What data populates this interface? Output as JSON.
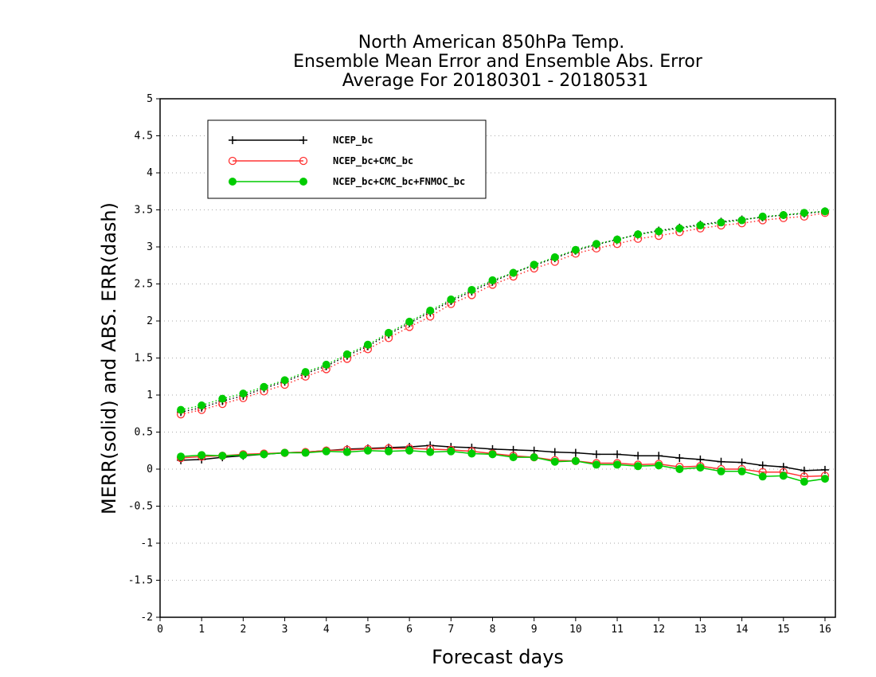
{
  "chart_data": {
    "type": "line",
    "title": [
      "North American 850hPa Temp.",
      "Ensemble Mean Error and Ensemble Abs. Error",
      "Average For 20180301 - 20180531"
    ],
    "xlabel": "Forecast days",
    "ylabel": "MERR(solid) and ABS. ERR(dash)",
    "xlim": [
      0,
      16.25
    ],
    "ylim": [
      -2,
      5
    ],
    "xticks": [
      "0",
      "1",
      "2",
      "3",
      "4",
      "5",
      "6",
      "7",
      "8",
      "9",
      "10",
      "11",
      "12",
      "13",
      "14",
      "15",
      "16"
    ],
    "yticks": [
      "-2",
      "-1.5",
      "-1",
      "-0.5",
      "0",
      "0.5",
      "1",
      "1.5",
      "2",
      "2.5",
      "3",
      "3.5",
      "4",
      "4.5",
      "5"
    ],
    "grid": true,
    "legend_position": "top-left",
    "x": [
      0.5,
      1,
      1.5,
      2,
      2.5,
      3,
      3.5,
      4,
      4.5,
      5,
      5.5,
      6,
      6.5,
      7,
      7.5,
      8,
      8.5,
      9,
      9.5,
      10,
      10.5,
      11,
      11.5,
      12,
      12.5,
      13,
      13.5,
      14,
      14.5,
      15,
      15.5,
      16
    ],
    "series": [
      {
        "name": "NCEP_bc",
        "color": "#000000",
        "marker": "plus",
        "merr": [
          0.12,
          0.13,
          0.16,
          0.18,
          0.2,
          0.22,
          0.23,
          0.25,
          0.27,
          0.28,
          0.29,
          0.3,
          0.32,
          0.3,
          0.29,
          0.27,
          0.26,
          0.25,
          0.23,
          0.22,
          0.2,
          0.2,
          0.18,
          0.18,
          0.15,
          0.13,
          0.1,
          0.09,
          0.05,
          0.03,
          -0.02,
          -0.01
        ],
        "abs_err": [
          0.77,
          0.83,
          0.92,
          0.99,
          1.09,
          1.18,
          1.29,
          1.39,
          1.53,
          1.66,
          1.82,
          1.97,
          2.12,
          2.27,
          2.4,
          2.53,
          2.65,
          2.75,
          2.85,
          2.95,
          3.03,
          3.1,
          3.17,
          3.22,
          3.26,
          3.3,
          3.34,
          3.37,
          3.4,
          3.43,
          3.45,
          3.48
        ]
      },
      {
        "name": "NCEP_bc+CMC_bc",
        "color": "#ff3333",
        "marker": "open-circle",
        "merr": [
          0.15,
          0.17,
          0.18,
          0.2,
          0.21,
          0.22,
          0.23,
          0.25,
          0.26,
          0.27,
          0.28,
          0.28,
          0.27,
          0.26,
          0.24,
          0.21,
          0.18,
          0.16,
          0.12,
          0.11,
          0.08,
          0.08,
          0.06,
          0.07,
          0.03,
          0.04,
          0.0,
          0.0,
          -0.04,
          -0.04,
          -0.1,
          -0.09
        ],
        "abs_err": [
          0.74,
          0.8,
          0.88,
          0.96,
          1.05,
          1.14,
          1.25,
          1.35,
          1.49,
          1.62,
          1.77,
          1.92,
          2.06,
          2.23,
          2.35,
          2.49,
          2.6,
          2.71,
          2.8,
          2.91,
          2.98,
          3.04,
          3.11,
          3.15,
          3.2,
          3.25,
          3.29,
          3.32,
          3.36,
          3.39,
          3.41,
          3.46
        ]
      },
      {
        "name": "NCEP_bc+CMC_bc+FNMOC_bc",
        "color": "#00cc00",
        "marker": "filled-circle",
        "merr": [
          0.17,
          0.19,
          0.18,
          0.19,
          0.2,
          0.22,
          0.22,
          0.24,
          0.23,
          0.25,
          0.24,
          0.25,
          0.23,
          0.24,
          0.21,
          0.2,
          0.16,
          0.16,
          0.1,
          0.11,
          0.06,
          0.06,
          0.04,
          0.05,
          0.0,
          0.02,
          -0.03,
          -0.03,
          -0.1,
          -0.09,
          -0.17,
          -0.13
        ],
        "abs_err": [
          0.8,
          0.86,
          0.95,
          1.02,
          1.11,
          1.2,
          1.31,
          1.41,
          1.55,
          1.68,
          1.84,
          1.99,
          2.14,
          2.29,
          2.42,
          2.55,
          2.65,
          2.76,
          2.86,
          2.96,
          3.04,
          3.1,
          3.17,
          3.21,
          3.25,
          3.29,
          3.33,
          3.36,
          3.41,
          3.43,
          3.46,
          3.48
        ]
      }
    ]
  }
}
